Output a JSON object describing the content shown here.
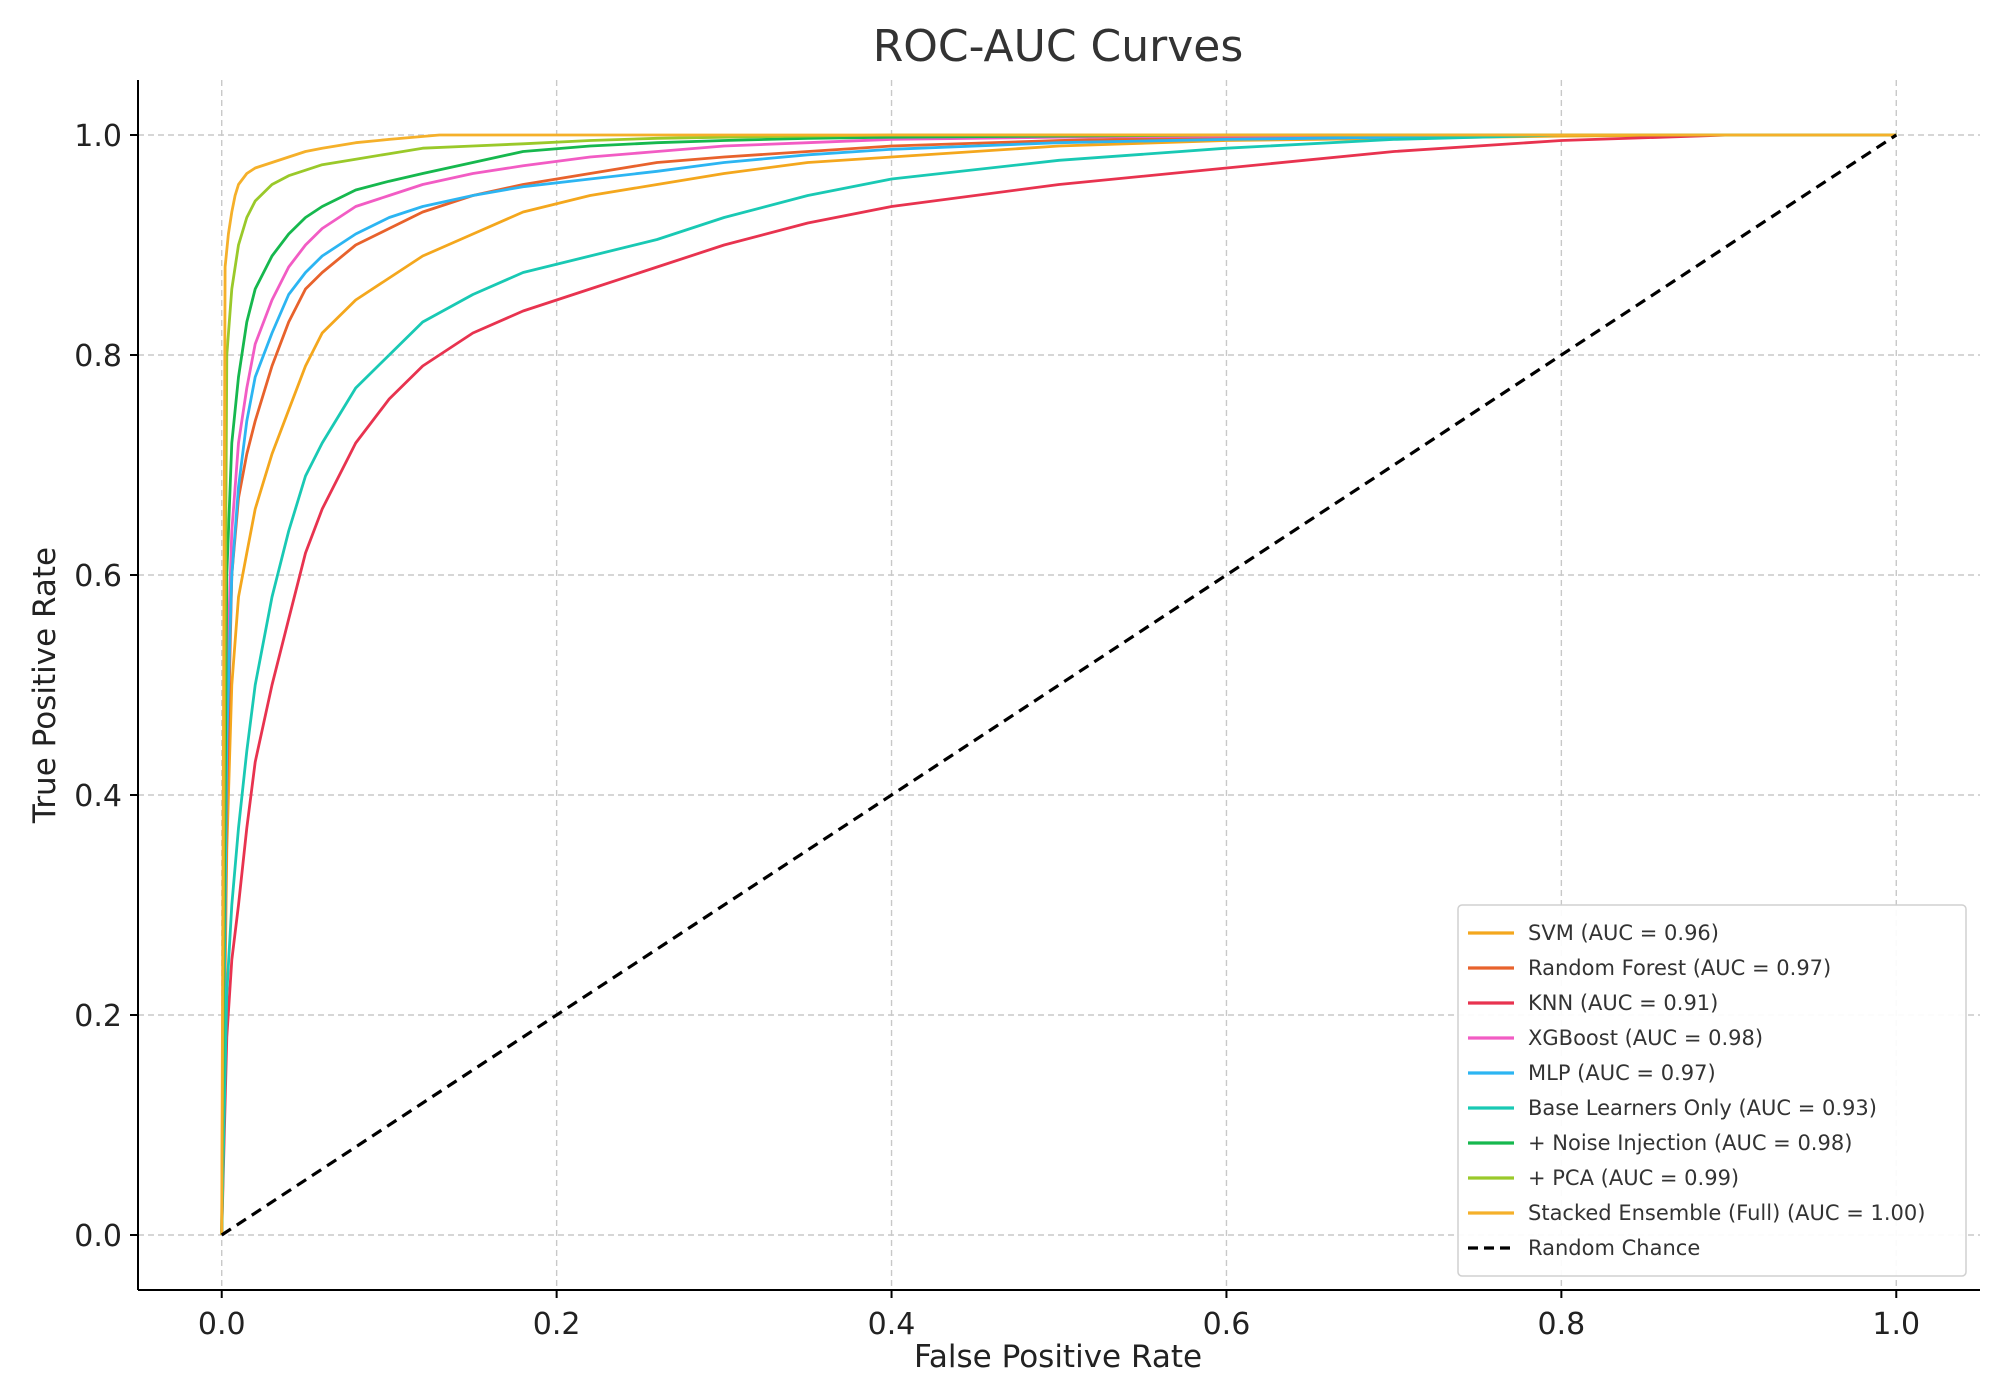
{
  "chart_data": {
    "type": "line",
    "title": "ROC-AUC Curves",
    "xlabel": "False Positive Rate",
    "ylabel": "True Positive Rate",
    "xlim": [
      -0.05,
      1.05
    ],
    "ylim": [
      -0.05,
      1.05
    ],
    "xticks": [
      0.0,
      0.2,
      0.4,
      0.6,
      0.8,
      1.0
    ],
    "yticks": [
      0.0,
      0.2,
      0.4,
      0.6,
      0.8,
      1.0
    ],
    "xtick_labels": [
      "0.0",
      "0.2",
      "0.4",
      "0.6",
      "0.8",
      "1.0"
    ],
    "ytick_labels": [
      "0.0",
      "0.2",
      "0.4",
      "0.6",
      "0.8",
      "1.0"
    ],
    "grid": true,
    "legend_position": "bottom-right",
    "series": [
      {
        "name": "SVM (AUC = 0.96)",
        "color": "#f4a71d",
        "dashed": false,
        "x": [
          0,
          0.003,
          0.006,
          0.01,
          0.015,
          0.02,
          0.03,
          0.04,
          0.05,
          0.06,
          0.08,
          0.1,
          0.12,
          0.15,
          0.18,
          0.22,
          0.26,
          0.3,
          0.35,
          0.4,
          0.5,
          0.6,
          0.7,
          0.8,
          0.9,
          1.0
        ],
        "y": [
          0,
          0.35,
          0.5,
          0.58,
          0.62,
          0.66,
          0.71,
          0.75,
          0.79,
          0.82,
          0.85,
          0.87,
          0.89,
          0.91,
          0.93,
          0.945,
          0.955,
          0.965,
          0.975,
          0.98,
          0.99,
          0.995,
          0.997,
          0.999,
          1.0,
          1.0
        ]
      },
      {
        "name": "Random Forest (AUC = 0.97)",
        "color": "#e8622c",
        "dashed": false,
        "x": [
          0,
          0.003,
          0.006,
          0.01,
          0.015,
          0.02,
          0.03,
          0.04,
          0.05,
          0.06,
          0.08,
          0.1,
          0.12,
          0.15,
          0.18,
          0.22,
          0.26,
          0.3,
          0.35,
          0.4,
          0.5,
          0.6,
          0.7,
          0.8,
          0.9,
          1.0
        ],
        "y": [
          0,
          0.4,
          0.6,
          0.67,
          0.71,
          0.74,
          0.79,
          0.83,
          0.86,
          0.875,
          0.9,
          0.915,
          0.93,
          0.945,
          0.955,
          0.965,
          0.975,
          0.98,
          0.985,
          0.99,
          0.995,
          0.998,
          0.999,
          1.0,
          1.0,
          1.0
        ]
      },
      {
        "name": "KNN (AUC = 0.91)",
        "color": "#e8334f",
        "dashed": false,
        "x": [
          0,
          0.003,
          0.006,
          0.01,
          0.015,
          0.02,
          0.03,
          0.04,
          0.05,
          0.06,
          0.08,
          0.1,
          0.12,
          0.15,
          0.18,
          0.22,
          0.26,
          0.3,
          0.35,
          0.4,
          0.5,
          0.6,
          0.7,
          0.8,
          0.9,
          1.0
        ],
        "y": [
          0,
          0.18,
          0.25,
          0.3,
          0.37,
          0.43,
          0.5,
          0.56,
          0.62,
          0.66,
          0.72,
          0.76,
          0.79,
          0.82,
          0.84,
          0.86,
          0.88,
          0.9,
          0.92,
          0.935,
          0.955,
          0.97,
          0.985,
          0.995,
          1.0,
          1.0
        ]
      },
      {
        "name": "XGBoost (AUC = 0.98)",
        "color": "#f25cc4",
        "dashed": false,
        "x": [
          0,
          0.003,
          0.006,
          0.01,
          0.015,
          0.02,
          0.03,
          0.04,
          0.05,
          0.06,
          0.08,
          0.1,
          0.12,
          0.15,
          0.18,
          0.22,
          0.26,
          0.3,
          0.35,
          0.4,
          0.5,
          0.6,
          0.7,
          0.8,
          0.9,
          1.0
        ],
        "y": [
          0,
          0.5,
          0.64,
          0.72,
          0.77,
          0.81,
          0.85,
          0.88,
          0.9,
          0.915,
          0.935,
          0.945,
          0.955,
          0.965,
          0.972,
          0.98,
          0.985,
          0.99,
          0.993,
          0.996,
          0.998,
          0.999,
          1.0,
          1.0,
          1.0,
          1.0
        ]
      },
      {
        "name": "MLP (AUC = 0.97)",
        "color": "#2cb5f2",
        "dashed": false,
        "x": [
          0,
          0.003,
          0.006,
          0.01,
          0.015,
          0.02,
          0.03,
          0.04,
          0.05,
          0.06,
          0.08,
          0.1,
          0.12,
          0.15,
          0.18,
          0.22,
          0.26,
          0.3,
          0.35,
          0.4,
          0.5,
          0.6,
          0.7,
          0.8,
          0.9,
          1.0
        ],
        "y": [
          0,
          0.45,
          0.6,
          0.68,
          0.74,
          0.78,
          0.82,
          0.855,
          0.875,
          0.89,
          0.91,
          0.925,
          0.935,
          0.945,
          0.953,
          0.96,
          0.967,
          0.975,
          0.982,
          0.987,
          0.993,
          0.996,
          0.998,
          1.0,
          1.0,
          1.0
        ]
      },
      {
        "name": "Base Learners Only (AUC = 0.93)",
        "color": "#19c9b4",
        "dashed": false,
        "x": [
          0,
          0.003,
          0.006,
          0.01,
          0.015,
          0.02,
          0.03,
          0.04,
          0.05,
          0.06,
          0.08,
          0.1,
          0.12,
          0.15,
          0.18,
          0.22,
          0.26,
          0.3,
          0.35,
          0.4,
          0.5,
          0.6,
          0.7,
          0.8,
          0.9,
          1.0
        ],
        "y": [
          0,
          0.22,
          0.3,
          0.37,
          0.44,
          0.5,
          0.58,
          0.64,
          0.69,
          0.72,
          0.77,
          0.8,
          0.83,
          0.855,
          0.875,
          0.89,
          0.905,
          0.925,
          0.945,
          0.96,
          0.977,
          0.988,
          0.996,
          1.0,
          1.0,
          1.0
        ]
      },
      {
        "name": "+ Noise Injection (AUC = 0.98)",
        "color": "#16b84e",
        "dashed": false,
        "x": [
          0,
          0.003,
          0.006,
          0.01,
          0.015,
          0.02,
          0.03,
          0.04,
          0.05,
          0.06,
          0.08,
          0.1,
          0.12,
          0.15,
          0.18,
          0.22,
          0.26,
          0.3,
          0.35,
          0.4,
          0.5,
          0.6,
          0.7,
          0.8,
          0.9,
          1.0
        ],
        "y": [
          0,
          0.6,
          0.72,
          0.78,
          0.83,
          0.86,
          0.89,
          0.91,
          0.925,
          0.935,
          0.95,
          0.958,
          0.965,
          0.975,
          0.985,
          0.99,
          0.993,
          0.995,
          0.997,
          0.998,
          0.999,
          1.0,
          1.0,
          1.0,
          1.0,
          1.0
        ]
      },
      {
        "name": "+ PCA (AUC = 0.99)",
        "color": "#9ac92a",
        "dashed": false,
        "x": [
          0,
          0.003,
          0.006,
          0.01,
          0.015,
          0.02,
          0.03,
          0.04,
          0.05,
          0.06,
          0.08,
          0.1,
          0.12,
          0.15,
          0.18,
          0.22,
          0.26,
          0.3,
          0.35,
          0.4,
          0.5,
          0.6,
          0.7,
          0.8,
          0.9,
          1.0
        ],
        "y": [
          0,
          0.8,
          0.86,
          0.9,
          0.925,
          0.94,
          0.955,
          0.963,
          0.968,
          0.973,
          0.978,
          0.983,
          0.988,
          0.99,
          0.992,
          0.995,
          0.997,
          0.998,
          0.999,
          1.0,
          1.0,
          1.0,
          1.0,
          1.0,
          1.0,
          1.0
        ]
      },
      {
        "name": "Stacked Ensemble (Full) (AUC = 1.00)",
        "color": "#f5b02a",
        "dashed": false,
        "x": [
          0,
          0.002,
          0.004,
          0.006,
          0.008,
          0.01,
          0.015,
          0.02,
          0.03,
          0.04,
          0.05,
          0.06,
          0.08,
          0.1,
          0.13,
          0.2,
          0.3,
          0.5,
          0.7,
          0.9,
          1.0
        ],
        "y": [
          0,
          0.88,
          0.91,
          0.93,
          0.945,
          0.955,
          0.965,
          0.97,
          0.975,
          0.98,
          0.985,
          0.988,
          0.993,
          0.996,
          1.0,
          1.0,
          1.0,
          1.0,
          1.0,
          1.0,
          1.0
        ]
      },
      {
        "name": "Random Chance",
        "color": "#000000",
        "dashed": true,
        "x": [
          0,
          1.0
        ],
        "y": [
          0,
          1.0
        ]
      }
    ]
  }
}
